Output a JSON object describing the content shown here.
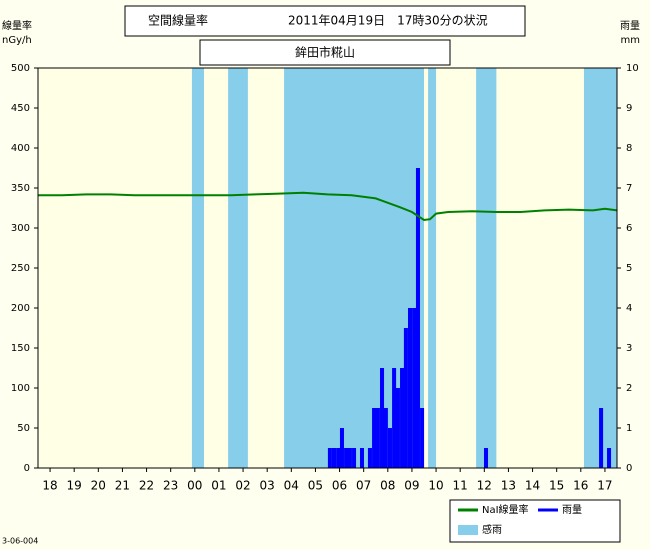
{
  "chart_data": {
    "type": "rain-dose",
    "title": "空間線量率",
    "timestamp": "2011年04月19日　17時30分の状況",
    "subtitle": "鉾田市糀山",
    "ylabel": "線量率",
    "yunit": "nGy/h",
    "y2label": "雨量",
    "y2unit": "mm",
    "footnote": "3-06-004",
    "xlim": [
      -0.5,
      23.5
    ],
    "xticks": [
      {
        "value": 0,
        "label": "18"
      },
      {
        "value": 1,
        "label": "19"
      },
      {
        "value": 2,
        "label": "20"
      },
      {
        "value": 3,
        "label": "21"
      },
      {
        "value": 4,
        "label": "22"
      },
      {
        "value": 5,
        "label": "23"
      },
      {
        "value": 6,
        "label": "00"
      },
      {
        "value": 7,
        "label": "01"
      },
      {
        "value": 8,
        "label": "02"
      },
      {
        "value": 9,
        "label": "03"
      },
      {
        "value": 10,
        "label": "04"
      },
      {
        "value": 11,
        "label": "05"
      },
      {
        "value": 12,
        "label": "06"
      },
      {
        "value": 13,
        "label": "07"
      },
      {
        "value": 14,
        "label": "08"
      },
      {
        "value": 15,
        "label": "09"
      },
      {
        "value": 16,
        "label": "10"
      },
      {
        "value": 17,
        "label": "11"
      },
      {
        "value": 18,
        "label": "12"
      },
      {
        "value": 19,
        "label": "13"
      },
      {
        "value": 20,
        "label": "14"
      },
      {
        "value": 21,
        "label": "15"
      },
      {
        "value": 22,
        "label": "16"
      },
      {
        "value": 23,
        "label": "17"
      }
    ],
    "ylim": [
      0,
      500
    ],
    "yticks": [
      0,
      50,
      100,
      150,
      200,
      250,
      300,
      350,
      400,
      450,
      500
    ],
    "y2lim": [
      0,
      10
    ],
    "y2ticks": [
      0,
      1,
      2,
      3,
      4,
      5,
      6,
      7,
      8,
      9,
      10
    ],
    "series": [
      {
        "name": "NaI線量率",
        "type": "line",
        "color": "#008000",
        "x": [
          -0.5,
          0.5,
          1.5,
          2.5,
          3.5,
          4.5,
          5.5,
          6.5,
          7.5,
          8.5,
          9.5,
          10.5,
          11.5,
          12.5,
          13.5,
          14.5,
          15,
          15.5,
          15.75,
          16,
          16.5,
          17.5,
          18.5,
          19.5,
          20.5,
          21.5,
          22.5,
          23,
          23.5
        ],
        "values": [
          341,
          341,
          342,
          342,
          341,
          341,
          341,
          341,
          341,
          342,
          343,
          344,
          342,
          341,
          337,
          326,
          320,
          310,
          311,
          318,
          320,
          321,
          320,
          320,
          322,
          323,
          322,
          324,
          322
        ]
      },
      {
        "name": "雨量",
        "type": "bar",
        "axis": "y2",
        "color": "#0000ff",
        "x": [
          11.6,
          11.77,
          11.94,
          12.1,
          12.27,
          12.43,
          12.6,
          12.93,
          13.26,
          13.43,
          13.59,
          13.76,
          13.92,
          14.09,
          14.26,
          14.42,
          14.59,
          14.75,
          14.92,
          15.09,
          15.25,
          15.42,
          18.07,
          22.84,
          23.17
        ],
        "values": [
          0.5,
          0.5,
          0.5,
          1.0,
          0.5,
          0.5,
          0.5,
          0.5,
          0.5,
          1.5,
          1.5,
          2.5,
          1.5,
          1.0,
          2.5,
          2.0,
          2.5,
          3.5,
          4.0,
          4.0,
          7.5,
          1.5,
          0.5,
          1.5,
          0.5
        ]
      },
      {
        "name": "感雨",
        "type": "span",
        "color": "#87ceeb",
        "ranges": [
          [
            5.88,
            6.38
          ],
          [
            7.38,
            8.2
          ],
          [
            9.7,
            15.5
          ],
          [
            15.67,
            16.0
          ],
          [
            17.66,
            18.5
          ],
          [
            22.13,
            23.5
          ]
        ]
      }
    ]
  }
}
